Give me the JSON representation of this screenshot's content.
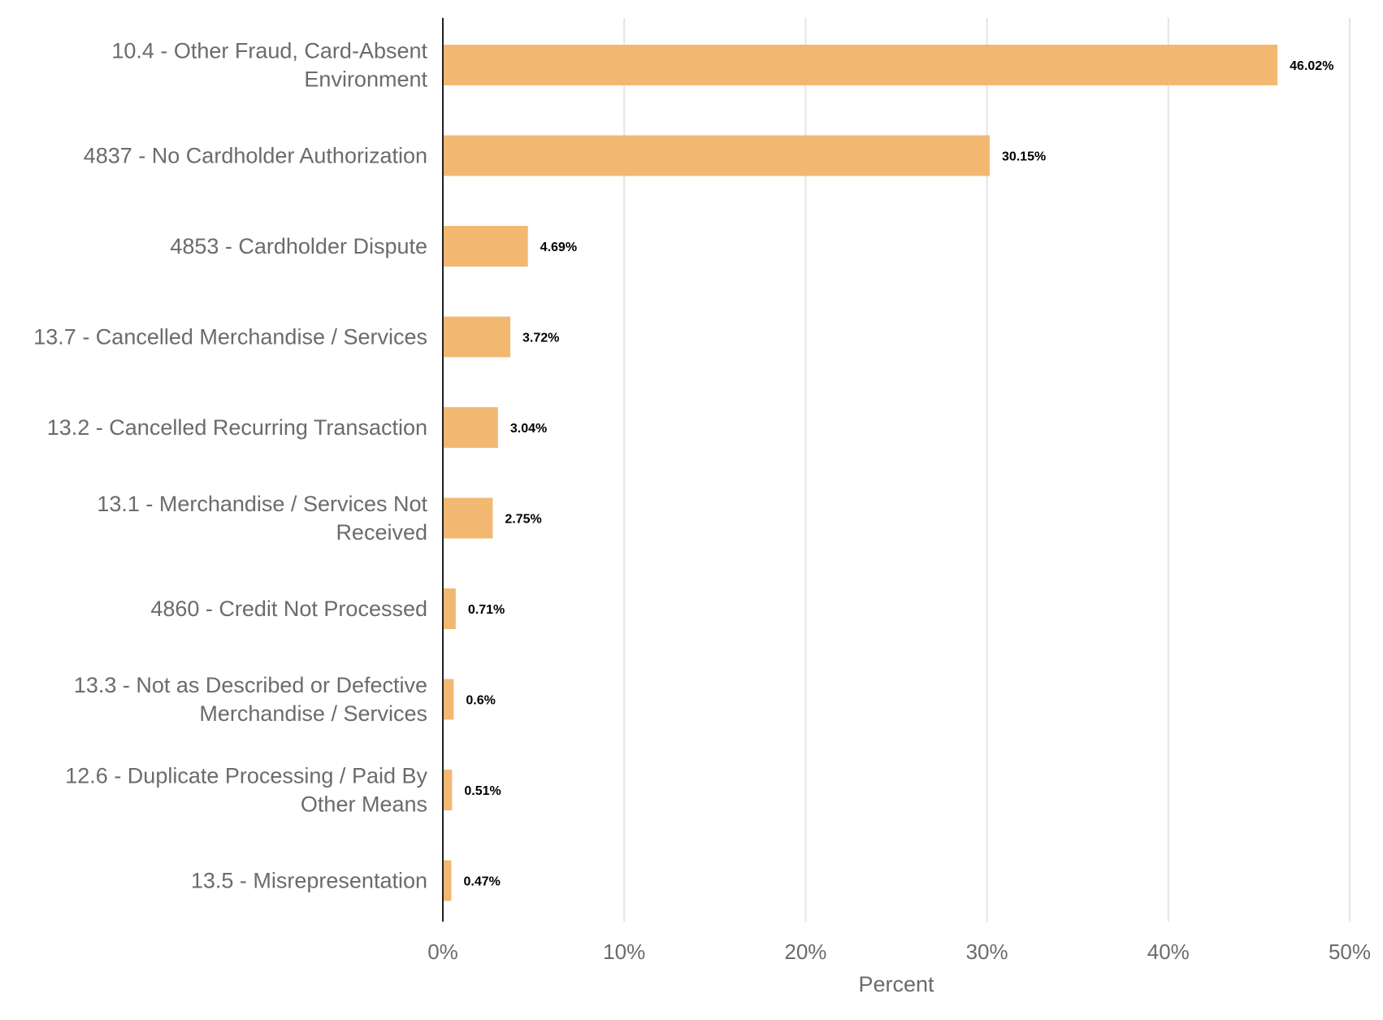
{
  "chart_data": {
    "type": "bar",
    "orientation": "horizontal",
    "categories": [
      [
        "10.4 - Other Fraud, Card-Absent",
        "Environment"
      ],
      [
        "4837 - No Cardholder Authorization"
      ],
      [
        "4853 - Cardholder Dispute"
      ],
      [
        "13.7 - Cancelled Merchandise / Services"
      ],
      [
        "13.2 - Cancelled Recurring Transaction"
      ],
      [
        "13.1 - Merchandise / Services Not",
        "Received"
      ],
      [
        "4860 - Credit Not Processed"
      ],
      [
        "13.3 - Not as Described or Defective",
        "Merchandise / Services"
      ],
      [
        "12.6 - Duplicate Processing / Paid By",
        "Other Means"
      ],
      [
        "13.5 - Misrepresentation"
      ]
    ],
    "values": [
      46.02,
      30.15,
      4.69,
      3.72,
      3.04,
      2.75,
      0.71,
      0.6,
      0.51,
      0.47
    ],
    "data_labels": [
      "46.02%",
      "30.15%",
      "4.69%",
      "3.72%",
      "3.04%",
      "2.75%",
      "0.71%",
      "0.6%",
      "0.51%",
      "0.47%"
    ],
    "xlim": [
      0,
      50
    ],
    "xticks": [
      0,
      10,
      20,
      30,
      40,
      50
    ],
    "xtick_labels": [
      "0%",
      "10%",
      "20%",
      "30%",
      "40%",
      "50%"
    ],
    "xlabel": "Percent",
    "ylabel": "",
    "title": "",
    "grid": "vertical",
    "legend": "none",
    "colors": {
      "bar": "#f2b872",
      "grid": "#e4e4e4",
      "axis": "#222222",
      "label_text": "#6b6b6b",
      "value_text": "#000000"
    }
  }
}
